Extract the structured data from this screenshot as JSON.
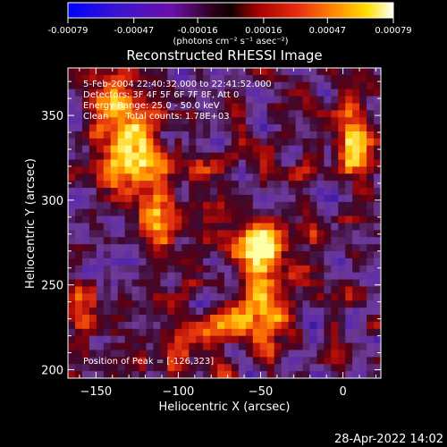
{
  "colorbar": {
    "tick_labels": [
      "-0.00079",
      "-0.00047",
      "-0.00016",
      "0.00016",
      "0.00047",
      "0.00079"
    ],
    "units_label": "(photons cm⁻² s⁻¹ asec⁻²)",
    "range": [
      -0.00079,
      0.00079
    ],
    "colors": [
      "#0000ff",
      "#3a14d0",
      "#7a12a8",
      "#b0002a",
      "#e01414",
      "#ff6a00",
      "#ffc000",
      "#ffff80",
      "#ffffff"
    ]
  },
  "plot": {
    "title": "Reconstructed RHESSI Image",
    "xlabel": "Heliocentric X (arcsec)",
    "ylabel": "Heliocentric Y (arcsec)",
    "xlim": [
      -167,
      23
    ],
    "ylim": [
      195,
      378
    ],
    "xticks": [
      -150,
      -100,
      -50,
      0
    ],
    "yticks": [
      200,
      250,
      300,
      350
    ]
  },
  "annotation": {
    "time_range": "5-Feb-2004 22:40:32.000 to 22:41:52.000",
    "detectors": "Detectors: 3F 4F 5F 6F 7F 8F, Att 0",
    "energy_range": "Energy Range: 25.0 - 50.0 keV",
    "clean": "Clean      Total counts: 1.78E+03",
    "peak": "Position of Peak = [-126,323]"
  },
  "footer": {
    "timestamp": "28-Apr-2022 14:02"
  },
  "image_data": {
    "peak_position": [
      -126,
      323
    ],
    "sources": [
      {
        "x": -43,
        "y": 268
      },
      {
        "x": -128,
        "y": 325
      },
      {
        "x": 8,
        "y": 320
      },
      {
        "x": -75,
        "y": 225
      }
    ]
  }
}
